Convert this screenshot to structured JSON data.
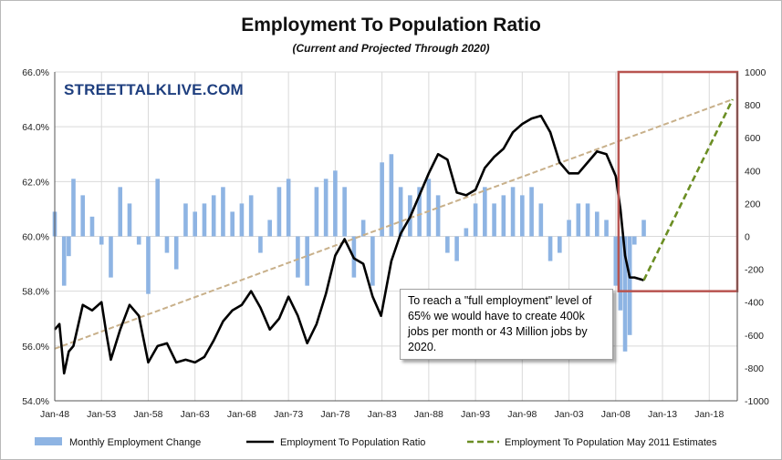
{
  "header": {
    "title": "Employment To Population Ratio",
    "subtitle": "(Current and Projected Through 2020)",
    "watermark": "STREETTALKLIVE.COM"
  },
  "annotation": {
    "text": "To reach a \"full employment\" level of 65% we would have to create 400k jobs per month or 43 Million jobs by 2020."
  },
  "colors": {
    "bars": "#8eb4e3",
    "ratio_line": "#000000",
    "trend_line": "#c8b08a",
    "projection_line": "#6b8e23",
    "highlight_box": "#b85450",
    "grid": "#d9d9d9"
  },
  "chart_data": {
    "type": "line",
    "x_tick_labels": [
      "Jan-48",
      "Jan-53",
      "Jan-58",
      "Jan-63",
      "Jan-68",
      "Jan-73",
      "Jan-78",
      "Jan-83",
      "Jan-88",
      "Jan-93",
      "Jan-98",
      "Jan-03",
      "Jan-08",
      "Jan-13",
      "Jan-18"
    ],
    "xlim": [
      1948,
      2021
    ],
    "y_left": {
      "ylim": [
        54,
        66
      ],
      "tick_labels": [
        "54.0%",
        "56.0%",
        "58.0%",
        "60.0%",
        "62.0%",
        "64.0%",
        "66.0%"
      ]
    },
    "y_right": {
      "ylim": [
        -1000,
        1000
      ],
      "tick_labels": [
        "-1000",
        "-800",
        "-600",
        "-400",
        "-200",
        "0",
        "200",
        "400",
        "600",
        "800",
        "1000"
      ]
    },
    "grid": true,
    "legend_position": "bottom",
    "series": [
      {
        "name": "Monthly Employment Change",
        "type": "bar",
        "axis": "right",
        "x": [
          1948,
          1949,
          1949.5,
          1950,
          1951,
          1952,
          1953,
          1954,
          1955,
          1956,
          1957,
          1958,
          1959,
          1960,
          1961,
          1962,
          1963,
          1964,
          1965,
          1966,
          1967,
          1968,
          1969,
          1970,
          1971,
          1972,
          1973,
          1974,
          1975,
          1976,
          1977,
          1978,
          1979,
          1980,
          1981,
          1982,
          1983,
          1984,
          1985,
          1986,
          1987,
          1988,
          1989,
          1990,
          1991,
          1992,
          1993,
          1994,
          1995,
          1996,
          1997,
          1998,
          1999,
          2000,
          2001,
          2002,
          2003,
          2004,
          2005,
          2006,
          2007,
          2008,
          2008.5,
          2009,
          2009.5,
          2010,
          2011
        ],
        "values": [
          150,
          -300,
          -120,
          350,
          250,
          120,
          -50,
          -250,
          300,
          200,
          -50,
          -350,
          350,
          -100,
          -200,
          200,
          150,
          200,
          250,
          300,
          150,
          200,
          250,
          -100,
          100,
          300,
          350,
          -250,
          -300,
          300,
          350,
          400,
          300,
          -250,
          100,
          -300,
          450,
          500,
          300,
          250,
          300,
          350,
          250,
          -100,
          -150,
          50,
          200,
          300,
          200,
          250,
          300,
          250,
          300,
          200,
          -150,
          -100,
          100,
          200,
          200,
          150,
          100,
          -300,
          -450,
          -700,
          -600,
          -50,
          100
        ]
      },
      {
        "name": "Employment To Population Ratio",
        "type": "line",
        "axis": "left",
        "x": [
          1948,
          1948.5,
          1949,
          1949.5,
          1950,
          1951,
          1952,
          1953,
          1953.5,
          1954,
          1955,
          1956,
          1957,
          1958,
          1959,
          1960,
          1961,
          1962,
          1963,
          1964,
          1965,
          1966,
          1967,
          1968,
          1969,
          1970,
          1971,
          1972,
          1973,
          1974,
          1975,
          1976,
          1977,
          1978,
          1979,
          1980,
          1981,
          1982,
          1982.9,
          1984,
          1985,
          1986,
          1987,
          1988,
          1989,
          1990,
          1991,
          1992,
          1993,
          1994,
          1995,
          1996,
          1997,
          1998,
          1999,
          2000,
          2001,
          2002,
          2003,
          2004,
          2005,
          2006,
          2007,
          2008,
          2008.5,
          2009,
          2009.5,
          2010,
          2011
        ],
        "values": [
          56.6,
          56.8,
          55.0,
          55.8,
          56.0,
          57.5,
          57.3,
          57.6,
          56.5,
          55.5,
          56.6,
          57.5,
          57.1,
          55.4,
          56.0,
          56.1,
          55.4,
          55.5,
          55.4,
          55.6,
          56.2,
          56.9,
          57.3,
          57.5,
          58.0,
          57.4,
          56.6,
          57.0,
          57.8,
          57.1,
          56.1,
          56.8,
          57.9,
          59.3,
          59.9,
          59.2,
          59.0,
          57.8,
          57.1,
          59.1,
          60.1,
          60.7,
          61.5,
          62.3,
          63.0,
          62.8,
          61.6,
          61.5,
          61.7,
          62.5,
          62.9,
          63.2,
          63.8,
          64.1,
          64.3,
          64.4,
          63.8,
          62.7,
          62.3,
          62.3,
          62.7,
          63.1,
          63.0,
          62.2,
          61.0,
          59.3,
          58.5,
          58.5,
          58.4
        ]
      },
      {
        "name": "Employment To Population May 2011 Estimates",
        "type": "line",
        "style": "dashed",
        "axis": "left",
        "x": [
          2011,
          2020.5
        ],
        "values": [
          58.4,
          65.0
        ]
      },
      {
        "name": "",
        "type": "line",
        "style": "dashed",
        "axis": "left",
        "x": [
          1948,
          2020.5
        ],
        "values": [
          55.9,
          65.0
        ]
      }
    ],
    "highlight_region": {
      "x": [
        2008.3,
        2021
      ],
      "y_left": [
        58.0,
        66.0
      ]
    }
  }
}
